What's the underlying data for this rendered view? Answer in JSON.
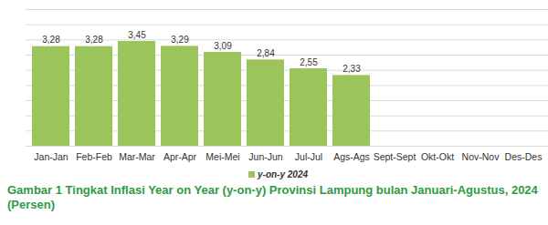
{
  "chart_data": {
    "type": "bar",
    "title": "Gambar 1 Tingkat Inflasi Year on Year (y-on-y) Provinsi Lampung bulan Januari-Agustus, 2024 (Persen)",
    "categories": [
      "Jan-Jan",
      "Feb-Feb",
      "Mar-Mar",
      "Apr-Apr",
      "Mei-Mei",
      "Jun-Jun",
      "Jul-Jul",
      "Ags-Ags",
      "Sept-Sept",
      "Okt-Okt",
      "Nov-Nov",
      "Des-Des"
    ],
    "series": [
      {
        "name": "y-on-y 2024",
        "color": "#9bc45a",
        "values": [
          3.28,
          3.28,
          3.45,
          3.29,
          3.09,
          2.84,
          2.55,
          2.33,
          null,
          null,
          null,
          null
        ],
        "value_labels": [
          "3,28",
          "3,28",
          "3,45",
          "3,29",
          "3,09",
          "2,84",
          "2,55",
          "2,33",
          null,
          null,
          null,
          null
        ]
      }
    ],
    "ylim": [
      0,
      4.5
    ],
    "yticks": [
      0,
      0.5,
      1,
      1.5,
      2,
      2.5,
      3,
      3.5,
      4,
      4.5
    ],
    "grid": true,
    "data_labels": true,
    "tick_labels": "x",
    "legend": "bottom"
  }
}
